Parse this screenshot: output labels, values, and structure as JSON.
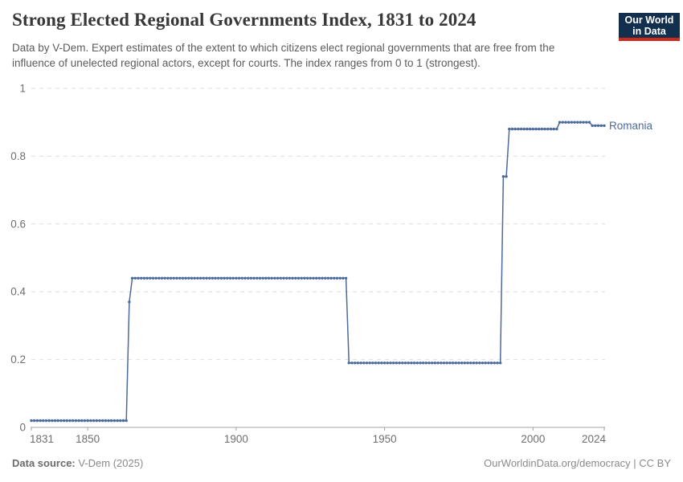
{
  "header": {
    "title": "Strong Elected Regional Governments Index, 1831 to 2024",
    "subtitle": "Data by V-Dem. Expert estimates of the extent to which citizens elect regional governments that are free from the influence of unelected regional actors, except for courts. The index ranges from 0 to 1 (strongest)."
  },
  "branding": {
    "logo_line1": "Our World",
    "logo_line2": "in Data",
    "logo_bg_color": "#12304E",
    "logo_accent_color": "#CC2A1D"
  },
  "footer": {
    "source_label": "Data source:",
    "source_value": "V-Dem (2025)",
    "link_text": "OurWorldinData.org/democracy | CC BY"
  },
  "chart_data": {
    "type": "line",
    "title": "Strong Elected Regional Governments Index, 1831 to 2024",
    "xlabel": "",
    "ylabel": "",
    "xlim": [
      1831,
      2024
    ],
    "ylim": [
      0,
      1
    ],
    "x_ticks": [
      "1831",
      "1850",
      "1900",
      "1950",
      "2000",
      "2024"
    ],
    "y_ticks": [
      "0",
      "0.2",
      "0.4",
      "0.6",
      "0.8",
      "1"
    ],
    "grid": "horizontal-dashed",
    "legend_position": "end-of-line-label",
    "colors": {
      "line": "#4C6A9C",
      "gridline": "#dedede",
      "axis": "#a3a3a3",
      "tick_text": "#6e6e6e"
    },
    "series": [
      {
        "name": "Romania",
        "color": "#4C6A9C",
        "marker": "point-per-year",
        "segments": [
          {
            "from": 1831,
            "to": 1863,
            "value": 0.02
          },
          {
            "from": 1864,
            "to": 1864,
            "value": 0.37
          },
          {
            "from": 1865,
            "to": 1937,
            "value": 0.44
          },
          {
            "from": 1938,
            "to": 1989,
            "value": 0.19
          },
          {
            "from": 1990,
            "to": 1991,
            "value": 0.74
          },
          {
            "from": 1992,
            "to": 2008,
            "value": 0.88
          },
          {
            "from": 2009,
            "to": 2019,
            "value": 0.9
          },
          {
            "from": 2020,
            "to": 2024,
            "value": 0.89
          }
        ]
      }
    ]
  }
}
